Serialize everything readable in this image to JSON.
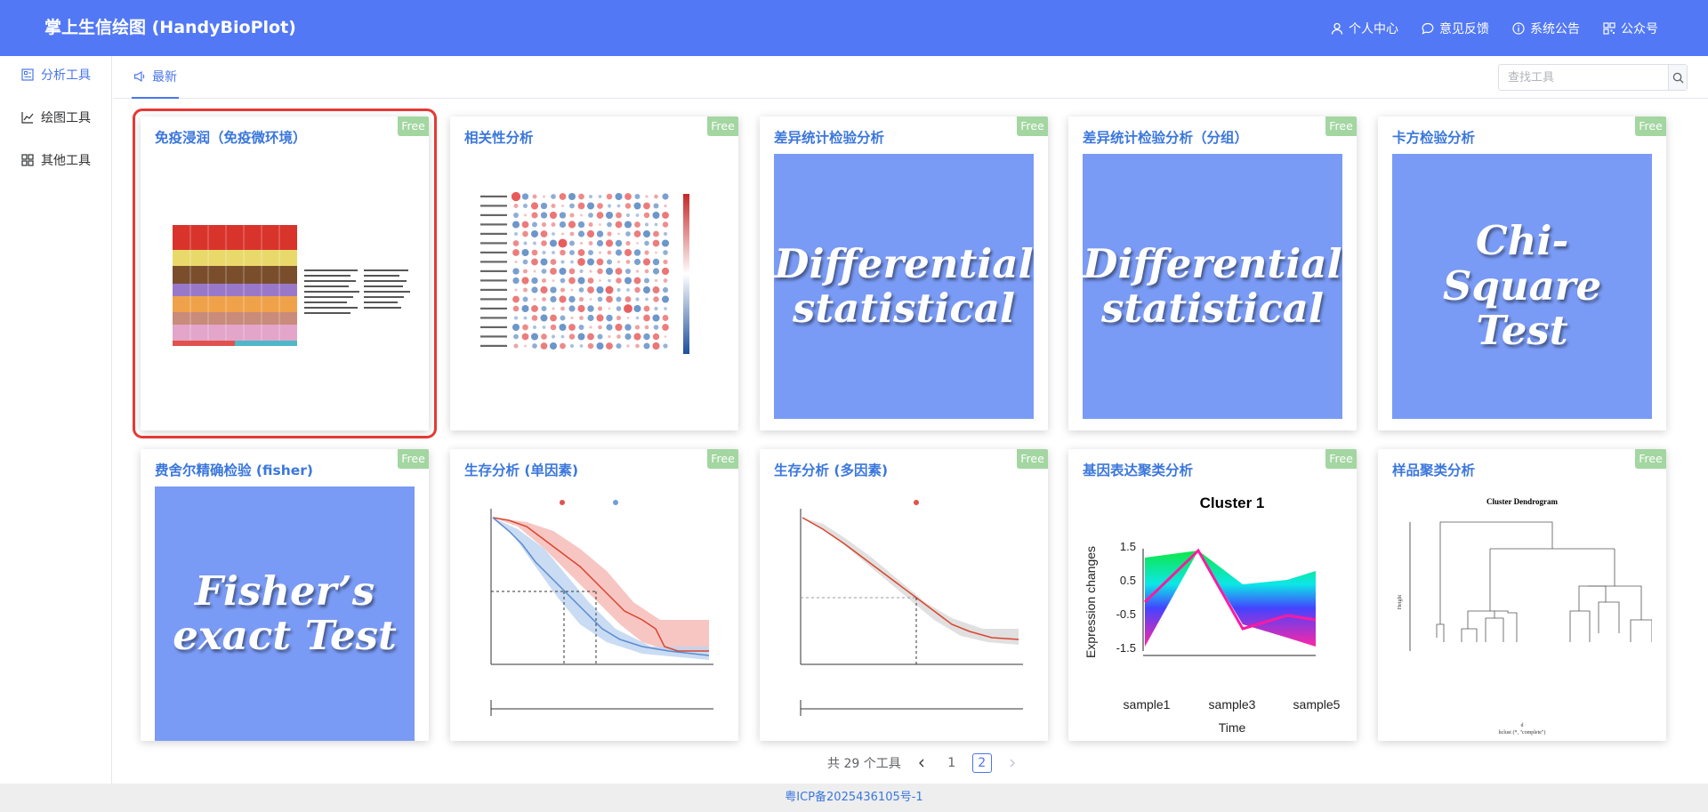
{
  "header": {
    "title": "掌上生信绘图 (HandyBioPlot)",
    "nav": [
      {
        "label": "个人中心",
        "icon": "user-icon"
      },
      {
        "label": "意见反馈",
        "icon": "chat-icon"
      },
      {
        "label": "系统公告",
        "icon": "info-icon"
      },
      {
        "label": "公众号",
        "icon": "qrcode-icon"
      }
    ]
  },
  "sidebar": {
    "items": [
      {
        "label": "分析工具",
        "icon": "analysis-icon",
        "active": true
      },
      {
        "label": "绘图工具",
        "icon": "chart-icon",
        "active": false
      },
      {
        "label": "其他工具",
        "icon": "grid-icon",
        "active": false
      }
    ]
  },
  "tabs": [
    {
      "label": "最新",
      "icon": "megaphone-icon"
    }
  ],
  "search": {
    "placeholder": "查找工具"
  },
  "cards": [
    {
      "title": "免疫浸润（免疫微环境）",
      "badge": "Free",
      "thumb": "stacked-bar-image"
    },
    {
      "title": "相关性分析",
      "badge": "Free",
      "thumb": "correlation-heatmap-image"
    },
    {
      "title": "差异统计检验分析",
      "badge": "Free",
      "thumb": "placeholder",
      "thumb_text": "Differential statistical"
    },
    {
      "title": "差异统计检验分析（分组）",
      "badge": "Free",
      "thumb": "placeholder",
      "thumb_text": "Differential statistical"
    },
    {
      "title": "卡方检验分析",
      "badge": "Free",
      "thumb": "placeholder",
      "thumb_text": "Chi-Square Test"
    },
    {
      "title": "费舍尔精确检验 (fisher)",
      "badge": "Free",
      "thumb": "placeholder",
      "thumb_text": "Fisher’s exact Test"
    },
    {
      "title": "生存分析 (单因素)",
      "badge": "Free",
      "thumb": "km-plot-image"
    },
    {
      "title": "生存分析 (多因素)",
      "badge": "Free",
      "thumb": "km-plot-image"
    },
    {
      "title": "基因表达聚类分析",
      "badge": "Free",
      "thumb": "cluster-expression-image",
      "thumb_labels": {
        "title": "Cluster 1",
        "ylabel": "Expression changes",
        "xlabel": "Time",
        "yticks": [
          "-1.5",
          "-0.5",
          "0.5",
          "1.5"
        ],
        "xticks": [
          "sample1",
          "sample3",
          "sample5"
        ]
      }
    },
    {
      "title": "样品聚类分析",
      "badge": "Free",
      "thumb": "dendrogram-image",
      "thumb_labels": {
        "title": "Cluster Dendrogram",
        "ylabel": "Height",
        "sub1": "d",
        "sub2": "hclust (*, \"complete\")"
      }
    }
  ],
  "pagination": {
    "total_text": "共 29 个工具",
    "pages": [
      "1",
      "2"
    ],
    "current": "2"
  },
  "footer": {
    "icp": "粤ICP备2025436105号-1"
  },
  "colors": {
    "header": "#5278f5",
    "accent": "#4a75ec",
    "badge": "#a3d6a1",
    "placeholder": "#7a9bf5",
    "selected_outline": "#e53935"
  }
}
